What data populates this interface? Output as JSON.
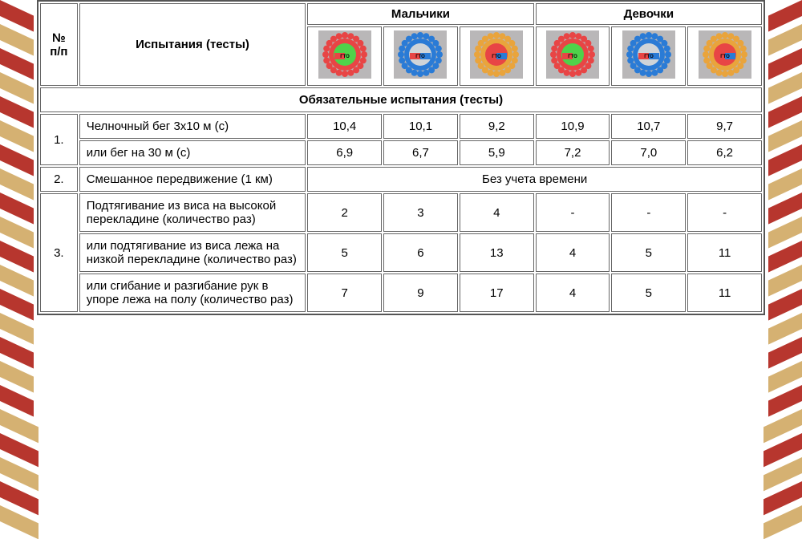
{
  "header": {
    "num": "№ п/п",
    "tests": "Испытания (тесты)",
    "boys": "Мальчики",
    "girls": "Девочки"
  },
  "badges": {
    "background": "#b9b7b8",
    "boys": [
      {
        "outer": "#e84545",
        "inner": "#4fd24a",
        "ribbon_l": "#e84545",
        "ribbon_r": "#4fd24a"
      },
      {
        "outer": "#2a7bd6",
        "inner": "#cfd4d8",
        "ribbon_l": "#e84545",
        "ribbon_r": "#2a7bd6"
      },
      {
        "outer": "#e9a43c",
        "inner": "#e84545",
        "ribbon_l": "#e84545",
        "ribbon_r": "#2a7bd6"
      }
    ],
    "girls": [
      {
        "outer": "#e84545",
        "inner": "#4fd24a",
        "ribbon_l": "#e84545",
        "ribbon_r": "#4fd24a"
      },
      {
        "outer": "#2a7bd6",
        "inner": "#cfd4d8",
        "ribbon_l": "#e84545",
        "ribbon_r": "#2a7bd6"
      },
      {
        "outer": "#e9a43c",
        "inner": "#e84545",
        "ribbon_l": "#e84545",
        "ribbon_r": "#2a7bd6"
      }
    ],
    "label": "ГТО"
  },
  "section_title": "Обязательные испытания (тесты)",
  "rows": [
    {
      "num": "1.",
      "sub": [
        {
          "name": "Челночный бег 3х10 м (с)",
          "vals": [
            "10,4",
            "10,1",
            "9,2",
            "10,9",
            "10,7",
            "9,7"
          ]
        },
        {
          "name": "или бег на 30 м (с)",
          "vals": [
            "6,9",
            "6,7",
            "5,9",
            "7,2",
            "7,0",
            "6,2"
          ]
        }
      ]
    },
    {
      "num": "2.",
      "sub": [
        {
          "name": "Смешанное передвижение (1 км)",
          "merged": "Без учета времени"
        }
      ]
    },
    {
      "num": "3.",
      "sub": [
        {
          "name": "Подтягивание из виса на высокой перекладине (количество раз)",
          "vals": [
            "2",
            "3",
            "4",
            "-",
            "-",
            "-"
          ]
        },
        {
          "name": "или подтягивание из виса лежа на низкой перекладине (количество раз)",
          "vals": [
            "5",
            "6",
            "13",
            "4",
            "5",
            "11"
          ]
        },
        {
          "name": "или сгибание и разгибание рук в упоре лежа на полу (количество раз)",
          "vals": [
            "7",
            "9",
            "17",
            "4",
            "5",
            "11"
          ]
        }
      ]
    }
  ],
  "stripes": {
    "colors": [
      "#b7362e",
      "#d5b172",
      "#b7362e",
      "#d5b172",
      "#b7362e",
      "#d5b172",
      "#b7362e",
      "#d5b172",
      "#b7362e",
      "#d5b172",
      "#b7362e",
      "#d5b172",
      "#b7362e",
      "#d5b172",
      "#b7362e",
      "#d5b172",
      "#b7362e",
      "#d5b172",
      "#b7362e",
      "#d5b172",
      "#b7362e",
      "#d5b172"
    ]
  }
}
